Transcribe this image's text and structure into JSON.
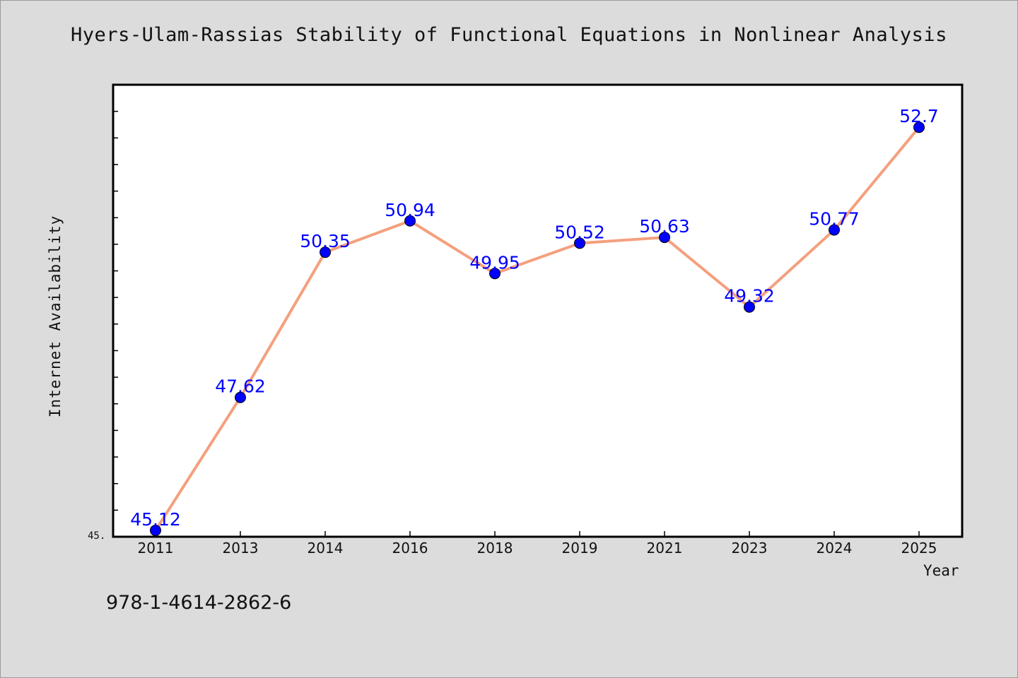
{
  "chart_data": {
    "type": "line",
    "title": "Hyers-Ulam-Rassias Stability of Functional Equations in Nonlinear Analysis",
    "xlabel": "Year",
    "ylabel": "Internet Availability",
    "categories": [
      "2011",
      "2013",
      "2014",
      "2016",
      "2018",
      "2019",
      "2021",
      "2023",
      "2024",
      "2025"
    ],
    "values": [
      45.12,
      47.62,
      50.35,
      50.94,
      49.95,
      50.52,
      50.63,
      49.32,
      50.77,
      52.7
    ],
    "data_labels": [
      "45.12",
      "47.62",
      "50.35",
      "50.94",
      "49.95",
      "50.52",
      "50.63",
      "49.32",
      "50.77",
      "52.7"
    ],
    "y_min_label": "45.",
    "ylim": [
      45.0,
      53.5
    ],
    "grid": false,
    "legend": "none",
    "line_color": "#f4a07e",
    "marker_color": "#0000ff",
    "label_color": "#0000ff"
  },
  "footer_text": "978-1-4614-2862-6"
}
